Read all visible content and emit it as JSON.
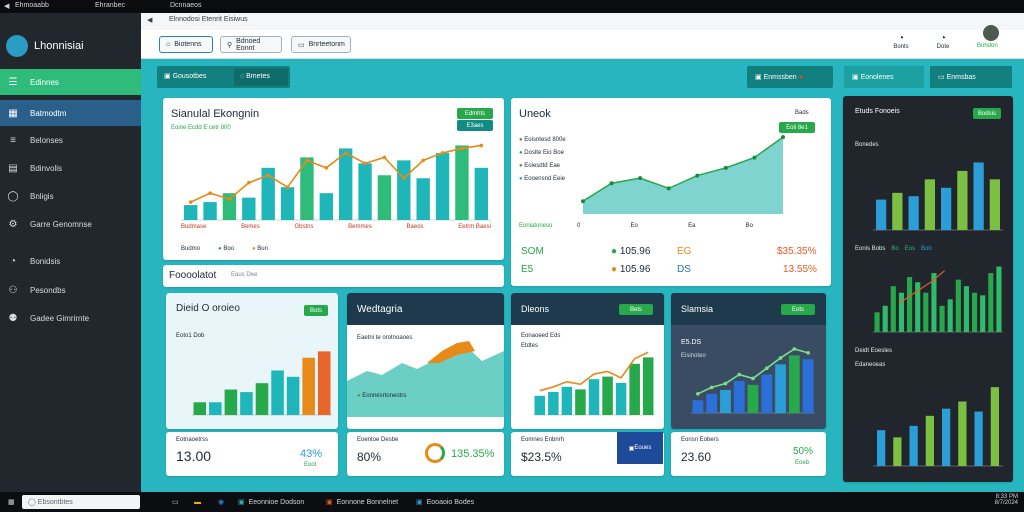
{
  "top_bar": {
    "title": "Ehmoaabb",
    "menu": "Ehranbec",
    "app": "Dcnnaeos"
  },
  "browser": {
    "tab_title": "Elnnodosi Etenrit Eisiwus",
    "back": "◀"
  },
  "sidebar": {
    "app_name": "Lhonnisiai",
    "items": [
      {
        "label": "Edinnes",
        "icon": "menu-icon"
      },
      {
        "label": "Batmodtm",
        "icon": "grid-icon"
      },
      {
        "label": "Belonses",
        "icon": "list-icon"
      },
      {
        "label": "Bdinvolis",
        "icon": "doc-icon"
      },
      {
        "label": "Bnligis",
        "icon": "circle-icon"
      },
      {
        "label": "Garre Genomnse",
        "icon": "gear-icon"
      },
      {
        "label": "Bonidsis",
        "icon": "chart-icon"
      },
      {
        "label": "Pesondbs",
        "icon": "user-icon"
      },
      {
        "label": "Gadee Gimrirnte",
        "icon": "person-icon"
      }
    ]
  },
  "toolbar": {
    "btn1": "Biotenns",
    "btn2": "Bdnoed Eonnt",
    "btn3": "Bnrteetonm",
    "user1": "Bonts",
    "user2": "Dote",
    "user_name": "Bohdon"
  },
  "tabs": {
    "tab1": "Gousotbes",
    "tab2": "Bmetes",
    "right_btn": "Enmssben",
    "panel_btn1": "Eonolenes",
    "panel_btn2": "Enmsbas"
  },
  "chart1": {
    "title": "Sianulal Ekongnin",
    "subtitle": "Eoine Ecdd E cetr 800",
    "badge1": "Edmhts",
    "badge2": "E3aes",
    "footer": [
      "Budmase",
      "Bemes",
      "Gbstns",
      "Bemmes",
      "Baeos",
      "Eetrm Baesi"
    ],
    "legend": [
      "Budmo",
      "Boo",
      "Bun"
    ]
  },
  "chart1_data": {
    "type": "bar",
    "values": [
      10,
      12,
      18,
      15,
      35,
      22,
      42,
      18,
      48,
      38,
      30,
      40,
      28,
      45,
      50,
      35
    ],
    "line": [
      12,
      18,
      14,
      25,
      30,
      22,
      40,
      35,
      45,
      38,
      42,
      28,
      40,
      45,
      48,
      50
    ]
  },
  "chart2": {
    "title": "Uneok",
    "badge_top": "Bads",
    "badge": "Eoli 8e1",
    "legend": [
      "Eoisntesd 800e",
      "Doslte Eio Boe",
      "Eoiesdtd Eae",
      "Eooensnd Eeie"
    ],
    "footer_label": "Eoniatoneso",
    "axis": [
      "0",
      "Eo",
      "Ea",
      "Bo"
    ],
    "stat1": "SOM",
    "stat2": "105.96",
    "stat3": "EG",
    "stat4": "$35.35%",
    "stat5": "E5",
    "stat6": "105.96",
    "stat7": "DS",
    "stat8": "13.55%"
  },
  "chart2_data": {
    "type": "area",
    "values": [
      5,
      12,
      14,
      10,
      15,
      18,
      22,
      30
    ]
  },
  "section": {
    "title": "Foooolatot",
    "sub": "Eaus Dee"
  },
  "card_a": {
    "title": "Dieid O oroieo",
    "badge": "Bots",
    "sub": "Eoto1 Dob",
    "stat_label": "Eotnaoetrss",
    "big_val": "13.00",
    "pct": "43%",
    "pct_label": "Eoot"
  },
  "card_a_data": {
    "values": [
      10,
      10,
      20,
      18,
      25,
      35,
      30,
      45,
      50
    ]
  },
  "card_b": {
    "title": "Wedtagria",
    "sub": "Eaetni te orotnoaoes",
    "legend": "Eonnesrtoneotrs",
    "stat_label": "Eoentoe Desbe",
    "big_val": "80%",
    "pct": "135.35%"
  },
  "card_c": {
    "title": "Dleons",
    "badge": "Bets",
    "sub1": "Eonaoeed Eds",
    "sub2": "Etdtes",
    "stat_label": "Eomnes Enbnrh",
    "big_val": "$23.5%",
    "btn": "Eoues"
  },
  "card_c_data": {
    "values": [
      15,
      18,
      22,
      20,
      28,
      30,
      25,
      40,
      45
    ]
  },
  "card_d": {
    "title": "Slamsia",
    "badge": "Eots",
    "sub": "E5.DS",
    "sub2": "Eisinoteo",
    "stat_label": "Eonsn Eobers",
    "big_val": "23.60",
    "pct": "50%",
    "pct_label": "Eoeb"
  },
  "card_d_data": {
    "values": [
      10,
      15,
      18,
      25,
      22,
      30,
      38,
      45,
      42
    ]
  },
  "dark_panel": {
    "title": "Etuds Fonoeis",
    "badge": "Bodsis",
    "label1": "Bonedes",
    "label2": "Deidt Eoesles",
    "label3": "Edaneoeas",
    "legend": [
      "Eonis Bobs",
      "Bo",
      "Eos",
      "Bob"
    ]
  },
  "dark1_data": {
    "values": [
      18,
      22,
      20,
      30,
      25,
      35,
      40,
      30
    ]
  },
  "dark2_data": {
    "values": [
      15,
      20,
      35,
      30,
      42,
      38,
      30,
      45,
      20,
      25,
      40,
      35,
      30,
      28,
      45,
      50
    ]
  },
  "dark3_data": {
    "values": [
      25,
      20,
      28,
      35,
      40,
      45,
      38,
      55
    ]
  },
  "taskbar": {
    "search": "Ebsontbtes",
    "items": [
      "Eeonnioe Dodson",
      "Eonnone Bonnelnet",
      "Eooaoio Bodes"
    ],
    "time": "8:33 PM",
    "date": "8/7/2024"
  },
  "colors": {
    "teal": "#1fb6ba",
    "green": "#27a84a",
    "blue": "#2b9ed8",
    "orange": "#e88a18",
    "dark": "#20262c"
  }
}
